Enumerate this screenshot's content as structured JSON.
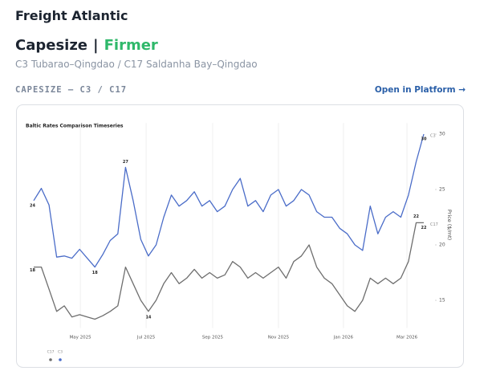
{
  "header": {
    "title": "Freight Atlantic",
    "segment": "Capesize",
    "separator": "|",
    "sentiment": "Firmer",
    "routes": "C3 Tubarao–Qingdao / C17 Saldanha Bay–Qingdao"
  },
  "section": {
    "label": "CAPESIZE — C3 / C17",
    "link": "Open in Platform →"
  },
  "chart_data": {
    "type": "line",
    "title": "Baltic Rates Comparison Timeseries",
    "y_label": "Price ($/mt)",
    "xticks": [
      {
        "value": 6.1,
        "label": "May 2025"
      },
      {
        "value": 14.7,
        "label": "Jul 2025"
      },
      {
        "value": 23.4,
        "label": "Sep 2025"
      },
      {
        "value": 32.0,
        "label": "Nov 2025"
      },
      {
        "value": 40.5,
        "label": "Jan 2026"
      },
      {
        "value": 48.8,
        "label": "Mar 2026"
      }
    ],
    "xlim": [
      0,
      51
    ],
    "ylim": [
      12.5,
      31
    ],
    "yticks": [
      15,
      20,
      25,
      30
    ],
    "grid": true,
    "legend": "bottom-left",
    "series": [
      {
        "name": "C3",
        "color": "#4a6cc8",
        "values": [
          24,
          25.1,
          23.6,
          18.9,
          19.0,
          18.8,
          19.6,
          18.8,
          18,
          19.1,
          20.4,
          21.0,
          27,
          24.0,
          20.5,
          19.0,
          20.0,
          22.5,
          24.5,
          23.5,
          24.0,
          24.8,
          23.5,
          24.0,
          23.0,
          23.5,
          25.0,
          26.0,
          23.5,
          24.0,
          23.0,
          24.5,
          25.0,
          23.5,
          24.0,
          25.0,
          24.5,
          23.0,
          22.5,
          22.5,
          21.5,
          21.0,
          20.0,
          19.5,
          23.5,
          21.0,
          22.5,
          23.0,
          22.5,
          24.5,
          27.5,
          30
        ]
      },
      {
        "name": "C17",
        "color": "#6e6e6e",
        "values": [
          18,
          18.0,
          16.0,
          14.0,
          14.5,
          13.5,
          13.7,
          13.5,
          13.3,
          13.6,
          14.0,
          14.5,
          18.0,
          16.5,
          15.0,
          14,
          15.0,
          16.5,
          17.5,
          16.5,
          17.0,
          17.8,
          17.0,
          17.5,
          17.0,
          17.3,
          18.5,
          18.0,
          17.0,
          17.5,
          17.0,
          17.5,
          18.0,
          17.0,
          18.5,
          19.0,
          20.0,
          18.0,
          17.0,
          16.5,
          15.5,
          14.5,
          14.0,
          15.0,
          17.0,
          16.5,
          17.0,
          16.5,
          17.0,
          18.5,
          22,
          22
        ]
      }
    ]
  }
}
